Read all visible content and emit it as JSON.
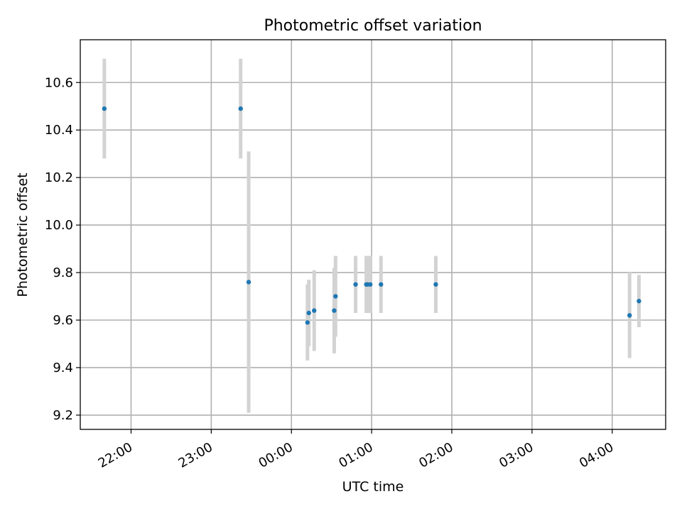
{
  "chart_data": {
    "type": "scatter",
    "title": "Photometric offset variation",
    "xlabel": "UTC time",
    "ylabel": "Photometric offset",
    "grid": true,
    "x_tick_labels": [
      "22:00",
      "23:00",
      "00:00",
      "01:00",
      "02:00",
      "03:00",
      "04:00"
    ],
    "x_ticks_hours": [
      22,
      23,
      24,
      25,
      26,
      27,
      28
    ],
    "y_ticks": [
      9.2,
      9.4,
      9.6,
      9.8,
      10.0,
      10.2,
      10.4,
      10.6
    ],
    "y_tick_labels": [
      "9.2",
      "9.4",
      "9.6",
      "9.8",
      "10.0",
      "10.2",
      "10.4",
      "10.6"
    ],
    "xlim": [
      "21:22",
      "04:40"
    ],
    "ylim": [
      9.14,
      10.78
    ],
    "colors": {
      "points": "#1f77b4",
      "errorbars": "#d3d3d3"
    },
    "series": [
      {
        "points": [
          {
            "x": "21:40",
            "y": 10.49,
            "err": 0.21
          },
          {
            "x": "23:22",
            "y": 10.49,
            "err": 0.21
          },
          {
            "x": "23:28",
            "y": 9.76,
            "err": 0.55
          },
          {
            "x": "00:12",
            "y": 9.59,
            "err": 0.16
          },
          {
            "x": "00:13",
            "y": 9.63,
            "err": 0.14
          },
          {
            "x": "00:17",
            "y": 9.64,
            "err": 0.17
          },
          {
            "x": "00:32",
            "y": 9.64,
            "err": 0.18
          },
          {
            "x": "00:33",
            "y": 9.7,
            "err": 0.17
          },
          {
            "x": "00:48",
            "y": 9.75,
            "err": 0.12
          },
          {
            "x": "00:56",
            "y": 9.75,
            "err": 0.12
          },
          {
            "x": "00:57",
            "y": 9.75,
            "err": 0.12
          },
          {
            "x": "00:59",
            "y": 9.75,
            "err": 0.12
          },
          {
            "x": "01:07",
            "y": 9.75,
            "err": 0.12
          },
          {
            "x": "01:48",
            "y": 9.75,
            "err": 0.12
          },
          {
            "x": "04:13",
            "y": 9.62,
            "err": 0.18
          },
          {
            "x": "04:20",
            "y": 9.68,
            "err": 0.11
          }
        ]
      }
    ]
  }
}
